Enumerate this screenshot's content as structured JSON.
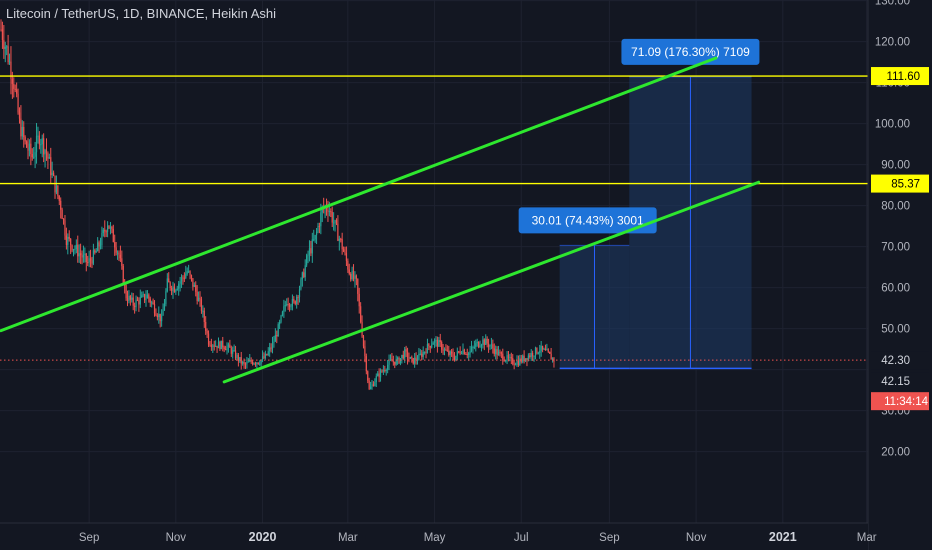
{
  "header": {
    "title": "Litecoin / TetherUS, 1D, BINANCE, Heikin Ashi"
  },
  "colors": {
    "background": "#131722",
    "grid": "#1e2230",
    "axis_text": "#b2b5be",
    "up_candle": "#26a69a",
    "down_candle": "#ef5350",
    "channel": "#2ee82e",
    "level_line": "#ffff00",
    "price_line": "#ef5350",
    "projection_fill": "#1d3a66",
    "projection_border": "#2962ff",
    "label_bg": "#1e73d8"
  },
  "chart_data": {
    "type": "candlestick",
    "title": "Litecoin / TetherUS, 1D, BINANCE, Heikin Ashi",
    "y_axis": {
      "ticks": [
        "130.00",
        "120.00",
        "110.00",
        "100.00",
        "90.00",
        "80.00",
        "70.00",
        "60.00",
        "50.00",
        "30.00",
        "20.00"
      ],
      "tick_values": [
        130,
        120,
        110,
        100,
        90,
        80,
        70,
        60,
        50,
        30,
        20
      ],
      "range": [
        15,
        140
      ]
    },
    "x_axis": {
      "ticks": [
        "Sep",
        "Nov",
        "2020",
        "Mar",
        "May",
        "Jul",
        "Sep",
        "Nov",
        "2021",
        "Mar"
      ],
      "tick_dates": [
        "2019-09-01",
        "2019-11-01",
        "2020-01-01",
        "2020-03-01",
        "2020-05-01",
        "2020-07-01",
        "2020-09-01",
        "2020-11-01",
        "2021-01-01",
        "2021-03-01"
      ],
      "range": [
        "2019-07-01",
        "2021-03-08"
      ]
    },
    "price_series": {
      "start": "2019-07-01",
      "end": "2020-07-24",
      "closes": [
        [
          "2019-07-01",
          123
        ],
        [
          "2019-07-05",
          118
        ],
        [
          "2019-07-10",
          110
        ],
        [
          "2019-07-14",
          100
        ],
        [
          "2019-07-18",
          95
        ],
        [
          "2019-07-23",
          92
        ],
        [
          "2019-07-28",
          97
        ],
        [
          "2019-08-02",
          93
        ],
        [
          "2019-08-07",
          86
        ],
        [
          "2019-08-12",
          80
        ],
        [
          "2019-08-16",
          72
        ],
        [
          "2019-08-21",
          70
        ],
        [
          "2019-08-26",
          68
        ],
        [
          "2019-08-31",
          66
        ],
        [
          "2019-09-05",
          68
        ],
        [
          "2019-09-10",
          72
        ],
        [
          "2019-09-14",
          76
        ],
        [
          "2019-09-17",
          73
        ],
        [
          "2019-09-22",
          68
        ],
        [
          "2019-09-27",
          58
        ],
        [
          "2019-10-02",
          56
        ],
        [
          "2019-10-07",
          57
        ],
        [
          "2019-10-12",
          58
        ],
        [
          "2019-10-17",
          55
        ],
        [
          "2019-10-22",
          52
        ],
        [
          "2019-10-26",
          61
        ],
        [
          "2019-10-31",
          60
        ],
        [
          "2019-11-05",
          62
        ],
        [
          "2019-11-09",
          64
        ],
        [
          "2019-11-14",
          60
        ],
        [
          "2019-11-19",
          55
        ],
        [
          "2019-11-24",
          47
        ],
        [
          "2019-11-29",
          46
        ],
        [
          "2019-12-04",
          46
        ],
        [
          "2019-12-09",
          45
        ],
        [
          "2019-12-14",
          43
        ],
        [
          "2019-12-19",
          41
        ],
        [
          "2019-12-24",
          42
        ],
        [
          "2019-12-29",
          42
        ],
        [
          "2020-01-03",
          43
        ],
        [
          "2020-01-08",
          46
        ],
        [
          "2020-01-13",
          51
        ],
        [
          "2020-01-18",
          57
        ],
        [
          "2020-01-23",
          56
        ],
        [
          "2020-01-28",
          61
        ],
        [
          "2020-02-02",
          68
        ],
        [
          "2020-02-07",
          72
        ],
        [
          "2020-02-12",
          79
        ],
        [
          "2020-02-16",
          80
        ],
        [
          "2020-02-21",
          75
        ],
        [
          "2020-02-26",
          70
        ],
        [
          "2020-03-02",
          64
        ],
        [
          "2020-03-07",
          61
        ],
        [
          "2020-03-12",
          46
        ],
        [
          "2020-03-16",
          35
        ],
        [
          "2020-03-21",
          38
        ],
        [
          "2020-03-26",
          40
        ],
        [
          "2020-03-31",
          42
        ],
        [
          "2020-04-05",
          42
        ],
        [
          "2020-04-10",
          44
        ],
        [
          "2020-04-15",
          42
        ],
        [
          "2020-04-20",
          43
        ],
        [
          "2020-04-25",
          45
        ],
        [
          "2020-04-30",
          47
        ],
        [
          "2020-05-05",
          46
        ],
        [
          "2020-05-10",
          44
        ],
        [
          "2020-05-15",
          43
        ],
        [
          "2020-05-20",
          45
        ],
        [
          "2020-05-25",
          44
        ],
        [
          "2020-05-30",
          46
        ],
        [
          "2020-06-04",
          47
        ],
        [
          "2020-06-09",
          46
        ],
        [
          "2020-06-14",
          44
        ],
        [
          "2020-06-19",
          43
        ],
        [
          "2020-06-24",
          42
        ],
        [
          "2020-06-29",
          42
        ],
        [
          "2020-07-04",
          43
        ],
        [
          "2020-07-09",
          44
        ],
        [
          "2020-07-14",
          45
        ],
        [
          "2020-07-19",
          44
        ],
        [
          "2020-07-24",
          42.3
        ]
      ]
    },
    "horizontal_levels": [
      {
        "label": "111.60",
        "value": 111.6
      },
      {
        "label": "85.37",
        "value": 85.37
      }
    ],
    "price_labels": [
      {
        "label": "42.30",
        "value": 42.3,
        "style": "current"
      },
      {
        "label": "42.15",
        "value": 42.15,
        "style": "plain"
      },
      {
        "label": "11:34:14",
        "style": "countdown"
      }
    ],
    "channel_lines": [
      {
        "from": [
          "2019-07-01",
          49.5
        ],
        "to": [
          "2020-11-15",
          116
        ]
      },
      {
        "from": [
          "2019-12-05",
          37
        ],
        "to": [
          "2020-12-15",
          85.7
        ]
      }
    ],
    "projections": [
      {
        "label": "71.09 (176.30%) 7109",
        "from_date": "2020-09-15",
        "to_date": "2020-12-10",
        "base": 40.3,
        "target": 111.4
      },
      {
        "label": "30.01 (74.43%) 3001",
        "from_date": "2020-07-28",
        "to_date": "2020-09-15",
        "base": 40.3,
        "target": 70.3
      }
    ]
  }
}
